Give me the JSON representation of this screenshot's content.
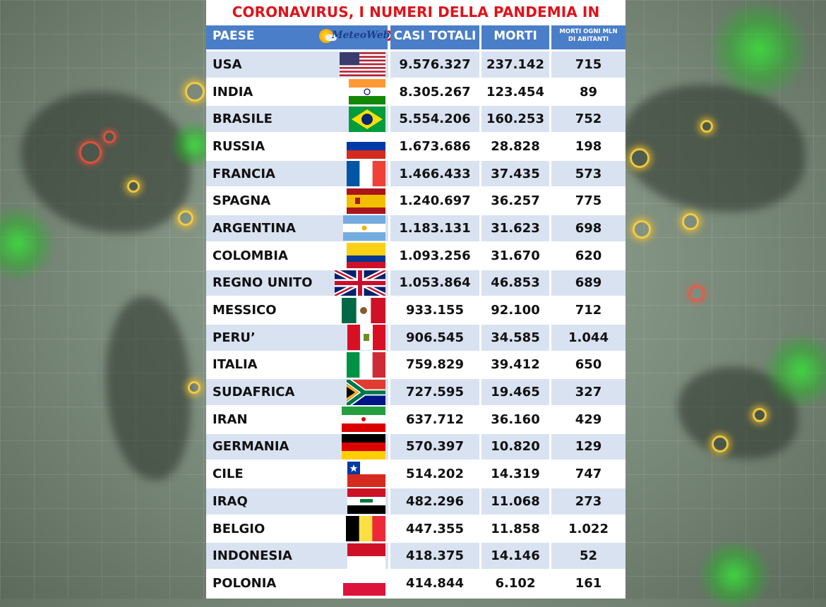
{
  "title": "CORONAVIRUS, I NUMERI DELLA PANDEMIA IN DIRETTA",
  "header": {
    "country": "PAESE",
    "logo_text": "MeteoWeb",
    "cases": "CASI TOTALI",
    "deaths": "MORTI",
    "deaths_per_mln_line1": "MORTI OGNI MLN",
    "deaths_per_mln_line2": "DI ABITANTI"
  },
  "colors": {
    "title_red": "#e0121a",
    "header_blue": "#4a7ec8",
    "row_alt": "#d9e2f1"
  },
  "rows": [
    {
      "country": "USA",
      "flag": "usa-flag",
      "cases": "9.576.327",
      "deaths": "237.142",
      "per_mln": "715"
    },
    {
      "country": "INDIA",
      "flag": "india-flag",
      "cases": "8.305.267",
      "deaths": "123.454",
      "per_mln": "89"
    },
    {
      "country": "BRASILE",
      "flag": "brazil-flag",
      "cases": "5.554.206",
      "deaths": "160.253",
      "per_mln": "752"
    },
    {
      "country": "RUSSIA",
      "flag": "russia-flag",
      "cases": "1.673.686",
      "deaths": "28.828",
      "per_mln": "198"
    },
    {
      "country": "FRANCIA",
      "flag": "france-flag",
      "cases": "1.466.433",
      "deaths": "37.435",
      "per_mln": "573"
    },
    {
      "country": "SPAGNA",
      "flag": "spain-flag",
      "cases": "1.240.697",
      "deaths": "36.257",
      "per_mln": "775"
    },
    {
      "country": "ARGENTINA",
      "flag": "argentina-flag",
      "cases": "1.183.131",
      "deaths": "31.623",
      "per_mln": "698"
    },
    {
      "country": "COLOMBIA",
      "flag": "colombia-flag",
      "cases": "1.093.256",
      "deaths": "31.670",
      "per_mln": "620"
    },
    {
      "country": "REGNO UNITO",
      "flag": "uk-flag",
      "cases": "1.053.864",
      "deaths": "46.853",
      "per_mln": "689"
    },
    {
      "country": "MESSICO",
      "flag": "mexico-flag",
      "cases": "933.155",
      "deaths": "92.100",
      "per_mln": "712"
    },
    {
      "country": "PERU’",
      "flag": "peru-flag",
      "cases": "906.545",
      "deaths": "34.585",
      "per_mln": "1.044"
    },
    {
      "country": "ITALIA",
      "flag": "italy-flag",
      "cases": "759.829",
      "deaths": "39.412",
      "per_mln": "650"
    },
    {
      "country": "SUDAFRICA",
      "flag": "south-africa-flag",
      "cases": "727.595",
      "deaths": "19.465",
      "per_mln": "327"
    },
    {
      "country": "IRAN",
      "flag": "iran-flag",
      "cases": "637.712",
      "deaths": "36.160",
      "per_mln": "429"
    },
    {
      "country": "GERMANIA",
      "flag": "germany-flag",
      "cases": "570.397",
      "deaths": "10.820",
      "per_mln": "129"
    },
    {
      "country": "CILE",
      "flag": "chile-flag",
      "cases": "514.202",
      "deaths": "14.319",
      "per_mln": "747"
    },
    {
      "country": "IRAQ",
      "flag": "iraq-flag",
      "cases": "482.296",
      "deaths": "11.068",
      "per_mln": "273"
    },
    {
      "country": "BELGIO",
      "flag": "belgium-flag",
      "cases": "447.355",
      "deaths": "11.858",
      "per_mln": "1.022"
    },
    {
      "country": "INDONESIA",
      "flag": "indonesia-flag",
      "cases": "418.375",
      "deaths": "14.146",
      "per_mln": "52"
    },
    {
      "country": "POLONIA",
      "flag": "poland-flag",
      "cases": "414.844",
      "deaths": "6.102",
      "per_mln": "161"
    }
  ]
}
